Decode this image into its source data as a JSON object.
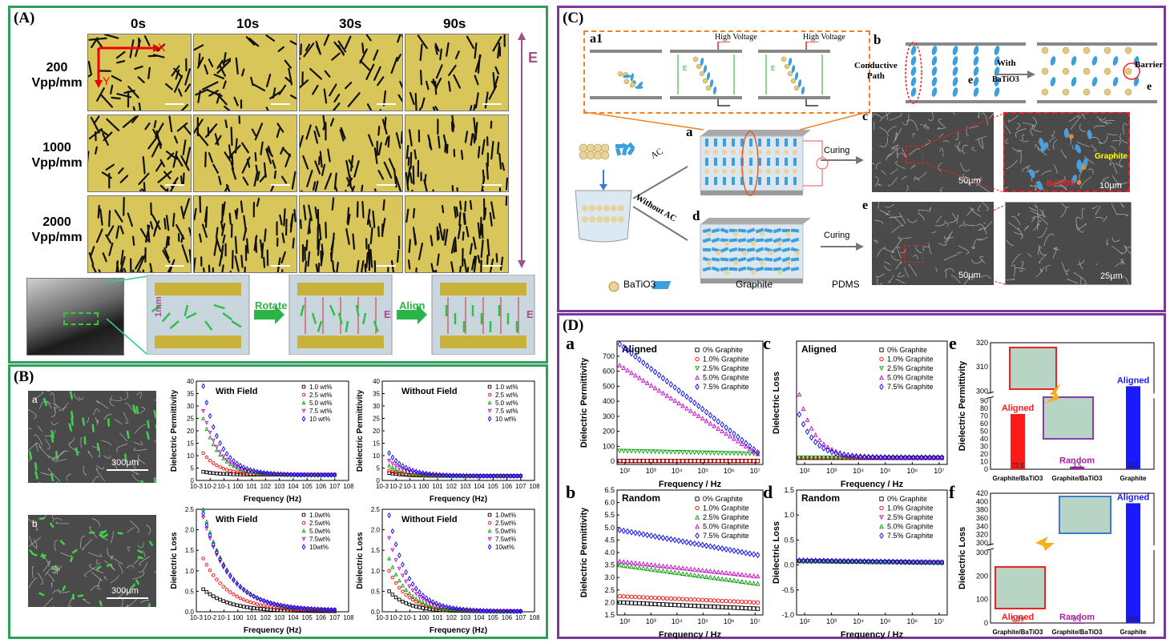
{
  "panelA": {
    "label": "(A)",
    "times": [
      "0s",
      "10s",
      "30s",
      "90s"
    ],
    "rows": [
      {
        "line1": "200",
        "line2": "Vpp/mm"
      },
      {
        "line1": "1000",
        "line2": "Vpp/mm"
      },
      {
        "line1": "2000",
        "line2": "Vpp/mm"
      }
    ],
    "axis_x": "X",
    "axis_y": "Y",
    "field": "E",
    "gap": "1mm",
    "arrow1": "Rotate",
    "arrow2": "Align",
    "e1": "E",
    "e2": "E"
  },
  "panelB": {
    "label": "(B)",
    "sem_a": "a",
    "sem_b": "b",
    "scale_a": "300μm",
    "scale_b": "300μm"
  },
  "panelC": {
    "label": "(C)",
    "a1": "a1",
    "hv1": "High Voltage",
    "hv2": "High Voltage",
    "b": "b",
    "conductive": "Conductive",
    "path": "Path",
    "with": "With",
    "batio": "BaTiO3",
    "barrier": "Barrier",
    "e_sym1": "e",
    "e_sym2": "e",
    "a": "a",
    "ac": "AC",
    "without_ac": "Without AC",
    "curing1": "Curing",
    "curing2": "Curing",
    "d": "d",
    "c": "c",
    "e": "e",
    "scale_c1": "50μm",
    "scale_c2": "10μm",
    "scale_e1": "50μm",
    "scale_e2": "25μm",
    "graphite_lbl": "Graphite",
    "batio_lbl": "BaTiO3",
    "legend": [
      "BaTiO3",
      "Graphite",
      "PDMS"
    ],
    "e_field": "E"
  },
  "panelD": {
    "label": "(D)",
    "e_bars": {
      "categories": [
        "Graphite/BaTiO3",
        "Graphite/BaTiO3",
        "Graphite"
      ],
      "values": [
        "72.5",
        "3.5",
        "302"
      ],
      "labels": [
        "Aligned",
        "Random",
        "Aligned"
      ]
    },
    "f_bars": {
      "categories": [
        "Graphite/BaTiO3",
        "Graphite/BaTiO3",
        "Graphite"
      ],
      "values": [
        "0.19",
        "0.1",
        "396"
      ],
      "labels": [
        "Aligned",
        "Random",
        "Aligned"
      ]
    }
  },
  "chart_data": [
    {
      "id": "B-c",
      "type": "scatter",
      "title": "With Field",
      "ylabel": "Dielectric Permittivity",
      "xlabel": "Frequency (Hz)",
      "xscale": "log",
      "xlim": [
        0.001,
        100000000
      ],
      "ylim": [
        0,
        40
      ],
      "yticks": [
        "0",
        "5",
        "10",
        "15",
        "20",
        "25",
        "30",
        "35",
        "40"
      ],
      "xticks": [
        "10-3",
        "10-2",
        "10-1",
        "100",
        "101",
        "102",
        "103",
        "104",
        "105",
        "106",
        "107",
        "108"
      ],
      "series": [
        {
          "name": "1.0 wt%",
          "color": "#000000",
          "marker": "square",
          "lo": 2.3,
          "hi": 3.5
        },
        {
          "name": "2.5 wt%",
          "color": "#ff0000",
          "marker": "circle",
          "lo": 2.2,
          "hi": 11
        },
        {
          "name": "5.0 wt%",
          "color": "#00a000",
          "marker": "triangle",
          "lo": 2.2,
          "hi": 25
        },
        {
          "name": "7.5 wt%",
          "color": "#cc00cc",
          "marker": "tri-down",
          "lo": 2.2,
          "hi": 28
        },
        {
          "name": "10 wt%",
          "color": "#0000ff",
          "marker": "diamond",
          "lo": 2.2,
          "hi": 38
        }
      ]
    },
    {
      "id": "B-d",
      "type": "scatter",
      "title": "Without Field",
      "ylabel": "Dielectric Permittivity",
      "xlabel": "Frequency (Hz)",
      "xscale": "log",
      "xlim": [
        0.001,
        100000000
      ],
      "ylim": [
        0,
        40
      ],
      "yticks": [
        "0",
        "5",
        "10",
        "15",
        "20",
        "25",
        "30",
        "35",
        "40"
      ],
      "xticks": [
        "10-3",
        "10-2",
        "10-1",
        "100",
        "101",
        "102",
        "103",
        "104",
        "105",
        "106",
        "107",
        "108"
      ],
      "series": [
        {
          "name": "1.0 wt%",
          "color": "#000000",
          "marker": "square",
          "lo": 1.8,
          "hi": 3
        },
        {
          "name": "2.5 wt%",
          "color": "#ff0000",
          "marker": "circle",
          "lo": 1.8,
          "hi": 4
        },
        {
          "name": "5.0 wt%",
          "color": "#00a000",
          "marker": "triangle",
          "lo": 1.8,
          "hi": 6
        },
        {
          "name": "7.5 wt%",
          "color": "#cc00cc",
          "marker": "tri-down",
          "lo": 1.8,
          "hi": 8
        },
        {
          "name": "10 wt%",
          "color": "#0000ff",
          "marker": "diamond",
          "lo": 1.8,
          "hi": 11
        }
      ]
    },
    {
      "id": "B-e",
      "type": "scatter",
      "title": "With Field",
      "ylabel": "Dielectric Loss",
      "xlabel": "Frequency (Hz)",
      "xscale": "log",
      "xlim": [
        0.001,
        100000000
      ],
      "ylim": [
        0,
        2.5
      ],
      "yticks": [
        "0.0",
        "0.5",
        "1.0",
        "1.5",
        "2.0",
        "2.5"
      ],
      "xticks": [
        "10-3",
        "10-2",
        "10-1",
        "100",
        "101",
        "102",
        "103",
        "104",
        "105",
        "106",
        "107",
        "108"
      ],
      "series": [
        {
          "name": "1.0wt%",
          "color": "#000000",
          "marker": "square",
          "lo": 0.01,
          "hi": 0.55
        },
        {
          "name": "2.5wt%",
          "color": "#ff0000",
          "marker": "circle",
          "lo": 0.02,
          "hi": 1.3
        },
        {
          "name": "5.0wt%",
          "color": "#00a000",
          "marker": "triangle",
          "lo": 0.03,
          "hi": 2.5
        },
        {
          "name": "7.5wt%",
          "color": "#cc00cc",
          "marker": "tri-down",
          "lo": 0.03,
          "hi": 2.3
        },
        {
          "name": "10wt%",
          "color": "#0000ff",
          "marker": "diamond",
          "lo": 0.03,
          "hi": 2.4
        }
      ]
    },
    {
      "id": "B-f",
      "type": "scatter",
      "title": "Without Field",
      "ylabel": "Dielectric Loss",
      "xlabel": "Frequency (Hz)",
      "xscale": "log",
      "xlim": [
        0.001,
        100000000
      ],
      "ylim": [
        0,
        2.5
      ],
      "yticks": [
        "0.0",
        "0.5",
        "1.0",
        "1.5",
        "2.0",
        "2.5"
      ],
      "xticks": [
        "10-3",
        "10-2",
        "10-1",
        "100",
        "101",
        "102",
        "103",
        "104",
        "105",
        "106",
        "107",
        "108"
      ],
      "series": [
        {
          "name": "1.0wt%",
          "color": "#000000",
          "marker": "square",
          "lo": 0.01,
          "hi": 0.5
        },
        {
          "name": "2.5wt%",
          "color": "#ff0000",
          "marker": "circle",
          "lo": 0.01,
          "hi": 1.0
        },
        {
          "name": "5.0wt%",
          "color": "#00a000",
          "marker": "triangle",
          "lo": 0.01,
          "hi": 1.3
        },
        {
          "name": "7.5wt%",
          "color": "#cc00cc",
          "marker": "tri-down",
          "lo": 0.01,
          "hi": 1.8
        },
        {
          "name": "10wt%",
          "color": "#0000ff",
          "marker": "diamond",
          "lo": 0.01,
          "hi": 2.35
        }
      ]
    },
    {
      "id": "D-a",
      "type": "scatter",
      "title": "Aligned",
      "ylabel": "Dielectric Permittivity",
      "xlabel": "Frequency / Hz",
      "xscale": "log",
      "xlim": [
        50,
        20000000
      ],
      "ylim": [
        -20,
        800
      ],
      "yticks": [
        "0",
        "100",
        "200",
        "300",
        "400",
        "500",
        "600",
        "700"
      ],
      "xticks": [
        "10²",
        "10³",
        "10⁴",
        "10⁵",
        "10⁶",
        "10⁷"
      ],
      "series": [
        {
          "name": "0% Graphite",
          "color": "#000000",
          "marker": "square",
          "lo": 3,
          "hi": 3
        },
        {
          "name": "1.0% Graphite",
          "color": "#ff0000",
          "marker": "circle",
          "lo": 3,
          "hi": 4
        },
        {
          "name": "2.5% Graphite",
          "color": "#00a000",
          "marker": "tri-down",
          "lo": 50,
          "hi": 70
        },
        {
          "name": "5.0% Graphite",
          "color": "#cc00cc",
          "marker": "triangle",
          "lo": 50,
          "hi": 640
        },
        {
          "name": "7.5% Graphite",
          "color": "#0000ff",
          "marker": "diamond",
          "lo": 60,
          "hi": 780
        }
      ]
    },
    {
      "id": "D-c",
      "type": "scatter",
      "title": "Aligned",
      "ylabel": "Dielectric Loss",
      "xlabel": "Frequency / Hz",
      "xscale": "log",
      "xlim": [
        50,
        20000000
      ],
      "ylim": [
        -20,
        350
      ],
      "yticks": [],
      "xticks": [
        "10²",
        "10³",
        "10⁴",
        "10⁵",
        "10⁶",
        "10⁷"
      ],
      "series": [
        {
          "name": "0% Graphite",
          "color": "#000000",
          "marker": "square",
          "lo": 0,
          "hi": 0
        },
        {
          "name": "1.0% Graphite",
          "color": "#ff0000",
          "marker": "circle",
          "lo": 0,
          "hi": 0
        },
        {
          "name": "2.5% Graphite",
          "color": "#00a000",
          "marker": "tri-down",
          "lo": 0,
          "hi": 0
        },
        {
          "name": "5.0% Graphite",
          "color": "#cc00cc",
          "marker": "triangle",
          "lo": 1,
          "hi": 190
        },
        {
          "name": "7.5% Graphite",
          "color": "#0000ff",
          "marker": "diamond",
          "lo": 1,
          "hi": 130
        }
      ]
    },
    {
      "id": "D-b",
      "type": "scatter",
      "title": "Random",
      "ylabel": "Dielectric Permittivity",
      "xlabel": "Frequency / Hz",
      "xscale": "log",
      "xlim": [
        50,
        20000000
      ],
      "ylim": [
        1.5,
        6.5
      ],
      "yticks": [
        "1.5",
        "2.0",
        "2.5",
        "3.0",
        "3.5",
        "4.0",
        "4.5",
        "5.0",
        "5.5",
        "6.0",
        "6.5"
      ],
      "xticks": [
        "10²",
        "10³",
        "10⁴",
        "10⁵",
        "10⁶",
        "10⁷"
      ],
      "series": [
        {
          "name": "0% Graphite",
          "color": "#000000",
          "marker": "square",
          "lo": 1.75,
          "hi": 2.0
        },
        {
          "name": "1.0% Graphite",
          "color": "#ff0000",
          "marker": "circle",
          "lo": 2.0,
          "hi": 2.25
        },
        {
          "name": "2.5% Graphite",
          "color": "#00a000",
          "marker": "triangle",
          "lo": 2.75,
          "hi": 3.5
        },
        {
          "name": "5.0% Graphite",
          "color": "#cc00cc",
          "marker": "triangle",
          "lo": 3.05,
          "hi": 3.65
        },
        {
          "name": "7.5% Graphite",
          "color": "#0000ff",
          "marker": "diamond",
          "lo": 3.9,
          "hi": 4.9
        }
      ]
    },
    {
      "id": "D-d",
      "type": "scatter",
      "title": "Random",
      "ylabel": "Dielectric Loss",
      "xlabel": "Frequency / Hz",
      "xscale": "log",
      "xlim": [
        50,
        20000000
      ],
      "ylim": [
        -1.0,
        1.5
      ],
      "yticks": [
        "-1.0",
        "-0.5",
        "0.0",
        "0.5",
        "1.0",
        "1.5"
      ],
      "xticks": [
        "10²",
        "10³",
        "10⁴",
        "10⁵",
        "10⁶",
        "10⁷"
      ],
      "series": [
        {
          "name": "0% Graphite",
          "color": "#000000",
          "marker": "square",
          "lo": 0.05,
          "hi": 0.08
        },
        {
          "name": "1.0% Graphite",
          "color": "#ff0000",
          "marker": "circle",
          "lo": 0.05,
          "hi": 0.08
        },
        {
          "name": "2.5% Graphite",
          "color": "#cc00cc",
          "marker": "tri-down",
          "lo": 0.05,
          "hi": 0.08
        },
        {
          "name": "5.0% Graphite",
          "color": "#00a000",
          "marker": "triangle",
          "lo": 0.05,
          "hi": 0.08
        },
        {
          "name": "7.5% Graphite",
          "color": "#0000ff",
          "marker": "diamond",
          "lo": 0.05,
          "hi": 0.09
        }
      ]
    }
  ]
}
